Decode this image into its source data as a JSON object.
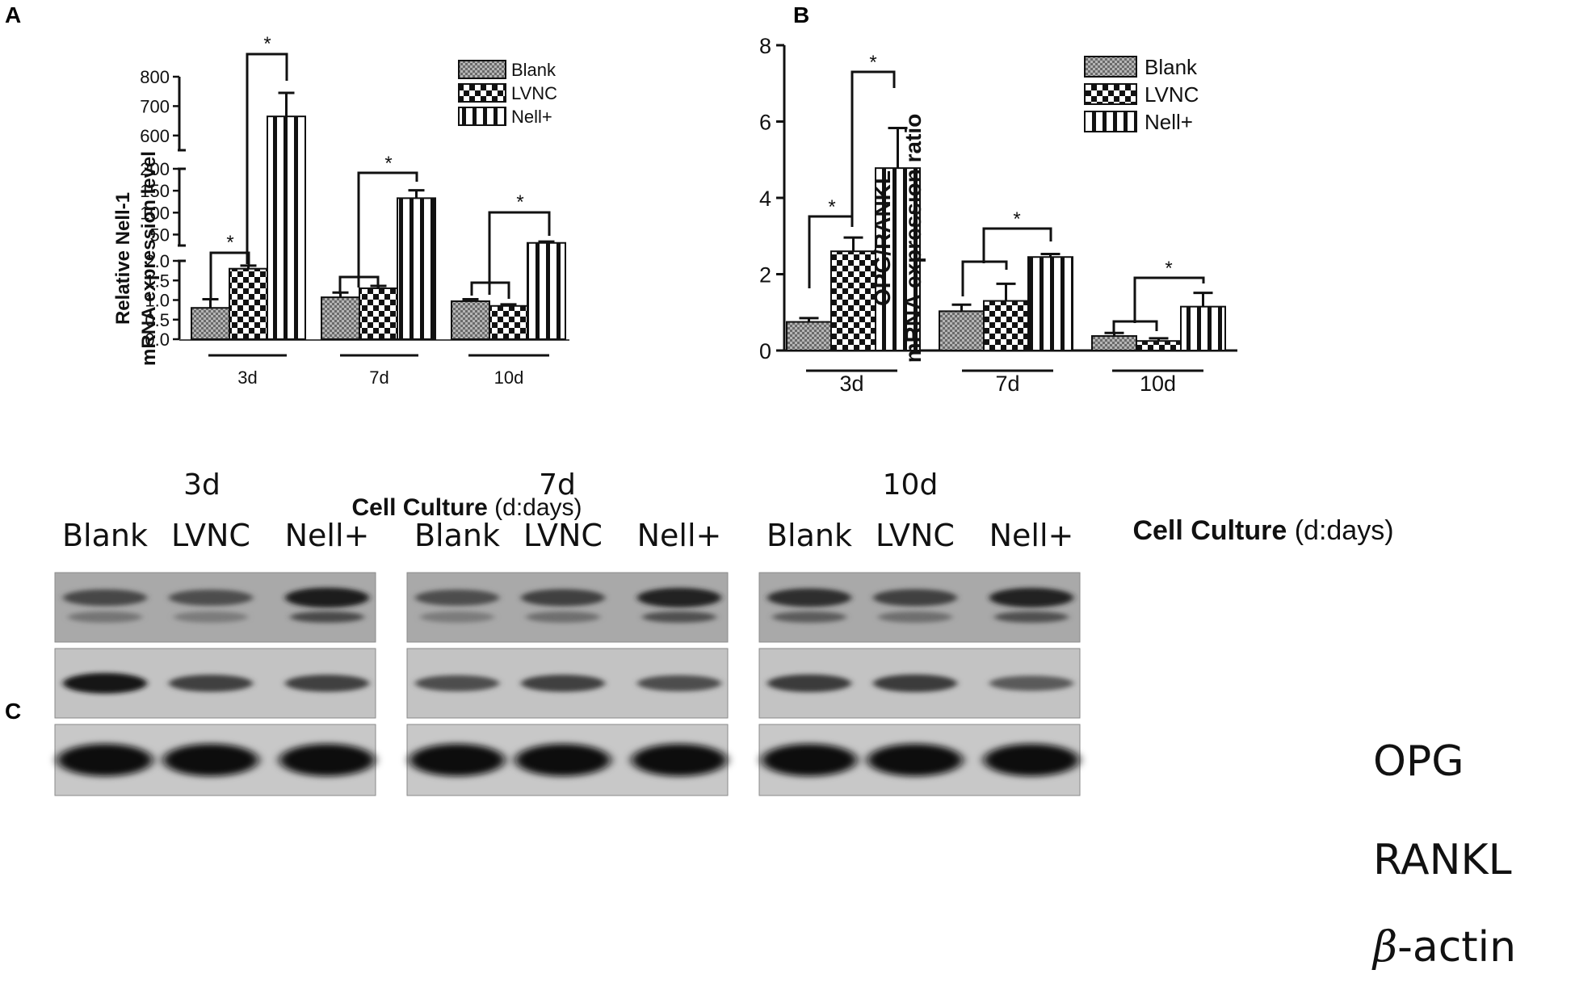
{
  "figure": {
    "panel_labels": [
      "A",
      "B",
      "C"
    ]
  },
  "chart_data": [
    {
      "type": "bar",
      "panel": "A",
      "categories": [
        "3d",
        "7d",
        "10d"
      ],
      "ylabel_line1": "Relative Nell-1",
      "ylabel_line2": "mRNA expression level",
      "xlabel_bold": "Cell Culture",
      "xlabel_rest": " (d:days)",
      "axis_break": true,
      "y_segments": [
        {
          "range": [
            0,
            2.0
          ],
          "ticks": [
            "0.0",
            "0.5",
            "1.0",
            "1.5",
            "2.0"
          ],
          "values": [
            0,
            0.5,
            1.0,
            1.5,
            2.0
          ]
        },
        {
          "range": [
            25,
            200
          ],
          "ticks": [
            "50",
            "100",
            "150",
            "200"
          ],
          "values": [
            50,
            100,
            150,
            200
          ]
        },
        {
          "range": [
            550,
            800
          ],
          "ticks": [
            "600",
            "700",
            "800"
          ],
          "values": [
            600,
            700,
            800
          ]
        }
      ],
      "series": [
        {
          "name": "Blank",
          "values": [
            0.8,
            1.07,
            0.97
          ],
          "errors": [
            0.22,
            0.12,
            0.05
          ]
        },
        {
          "name": "LVNC",
          "values": [
            1.8,
            1.3,
            0.85
          ],
          "errors": [
            0.08,
            0.06,
            0.04
          ]
        },
        {
          "name": "Nell+",
          "values": [
            665,
            133,
            31
          ],
          "errors": [
            80,
            18,
            3
          ]
        }
      ],
      "significance": [
        {
          "label": "*",
          "pair": [
            "Blank",
            "LVNC"
          ],
          "group": "3d"
        },
        {
          "label": "*",
          "pair": [
            "LVNC",
            "Nell+"
          ],
          "group": "3d"
        },
        {
          "label": "",
          "pair": [
            "Blank",
            "LVNC"
          ],
          "group": "7d"
        },
        {
          "label": "*",
          "pair": [
            "LVNC",
            "Nell+"
          ],
          "group": "7d"
        },
        {
          "label": "",
          "pair": [
            "Blank",
            "LVNC"
          ],
          "group": "10d"
        },
        {
          "label": "*",
          "pair": [
            "LVNC",
            "Nell+"
          ],
          "group": "10d"
        }
      ],
      "legend": [
        "Blank",
        "LVNC",
        "Nell+"
      ],
      "legend_position": "top-right"
    },
    {
      "type": "bar",
      "panel": "B",
      "categories": [
        "3d",
        "7d",
        "10d"
      ],
      "ylabel_line1": "OPG/RANKL",
      "ylabel_line2": "mRNA expression ratio",
      "xlabel_bold": "Cell Culture",
      "xlabel_rest": " (d:days)",
      "ylim": [
        0,
        8
      ],
      "yticks": [
        "0",
        "2",
        "4",
        "6",
        "8"
      ],
      "series": [
        {
          "name": "Blank",
          "values": [
            0.75,
            1.03,
            0.38
          ],
          "errors": [
            0.1,
            0.17,
            0.08
          ]
        },
        {
          "name": "LVNC",
          "values": [
            2.6,
            1.3,
            0.25
          ],
          "errors": [
            0.36,
            0.45,
            0.07
          ]
        },
        {
          "name": "Nell+",
          "values": [
            4.78,
            2.45,
            1.15
          ],
          "errors": [
            1.05,
            0.08,
            0.36
          ]
        }
      ],
      "significance": [
        {
          "label": "*",
          "pair": [
            "Blank",
            "LVNC"
          ],
          "group": "3d"
        },
        {
          "label": "*",
          "pair": [
            "LVNC",
            "Nell+"
          ],
          "group": "3d"
        },
        {
          "label": "",
          "pair": [
            "Blank",
            "LVNC"
          ],
          "group": "7d"
        },
        {
          "label": "*",
          "pair": [
            "LVNC",
            "Nell+"
          ],
          "group": "7d"
        },
        {
          "label": "",
          "pair": [
            "Blank",
            "LVNC"
          ],
          "group": "10d"
        },
        {
          "label": "*",
          "pair": [
            "LVNC",
            "Nell+"
          ],
          "group": "10d"
        }
      ],
      "legend": [
        "Blank",
        "LVNC",
        "Nell+"
      ],
      "legend_position": "top-right"
    }
  ],
  "western_blot": {
    "panel": "C",
    "timepoints": [
      "3d",
      "7d",
      "10d"
    ],
    "lanes": [
      "Blank",
      "LVNC",
      "Nell+"
    ],
    "proteins": [
      "OPG",
      "RANKL",
      "-actin"
    ],
    "beta_symbol": "β",
    "relative_intensity": {
      "OPG": [
        [
          0.55,
          0.5,
          0.9
        ],
        [
          0.5,
          0.6,
          0.85
        ],
        [
          0.75,
          0.6,
          0.85
        ]
      ],
      "RANKL": [
        [
          0.95,
          0.6,
          0.6
        ],
        [
          0.5,
          0.6,
          0.5
        ],
        [
          0.65,
          0.65,
          0.4
        ]
      ],
      "-actin": [
        [
          1.0,
          1.0,
          1.0
        ],
        [
          1.0,
          1.0,
          1.0
        ],
        [
          1.0,
          1.0,
          1.0
        ]
      ]
    }
  }
}
